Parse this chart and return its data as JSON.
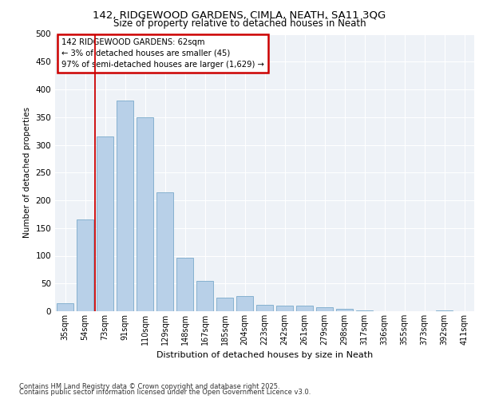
{
  "title1": "142, RIDGEWOOD GARDENS, CIMLA, NEATH, SA11 3QG",
  "title2": "Size of property relative to detached houses in Neath",
  "xlabel": "Distribution of detached houses by size in Neath",
  "ylabel": "Number of detached properties",
  "categories": [
    "35sqm",
    "54sqm",
    "73sqm",
    "91sqm",
    "110sqm",
    "129sqm",
    "148sqm",
    "167sqm",
    "185sqm",
    "204sqm",
    "223sqm",
    "242sqm",
    "261sqm",
    "279sqm",
    "298sqm",
    "317sqm",
    "336sqm",
    "355sqm",
    "373sqm",
    "392sqm",
    "411sqm"
  ],
  "values": [
    15,
    165,
    315,
    380,
    350,
    215,
    97,
    55,
    25,
    28,
    12,
    10,
    10,
    7,
    4,
    1,
    0,
    0,
    0,
    1,
    0
  ],
  "bar_color": "#b8d0e8",
  "bar_edge_color": "#7aaaca",
  "vline_x": 1.5,
  "vline_color": "#cc0000",
  "annotation_text": "142 RIDGEWOOD GARDENS: 62sqm\n← 3% of detached houses are smaller (45)\n97% of semi-detached houses are larger (1,629) →",
  "annotation_box_color": "#cc0000",
  "ylim": [
    0,
    500
  ],
  "yticks": [
    0,
    50,
    100,
    150,
    200,
    250,
    300,
    350,
    400,
    450,
    500
  ],
  "background_color": "#eef2f7",
  "footer1": "Contains HM Land Registry data © Crown copyright and database right 2025.",
  "footer2": "Contains public sector information licensed under the Open Government Licence v3.0."
}
